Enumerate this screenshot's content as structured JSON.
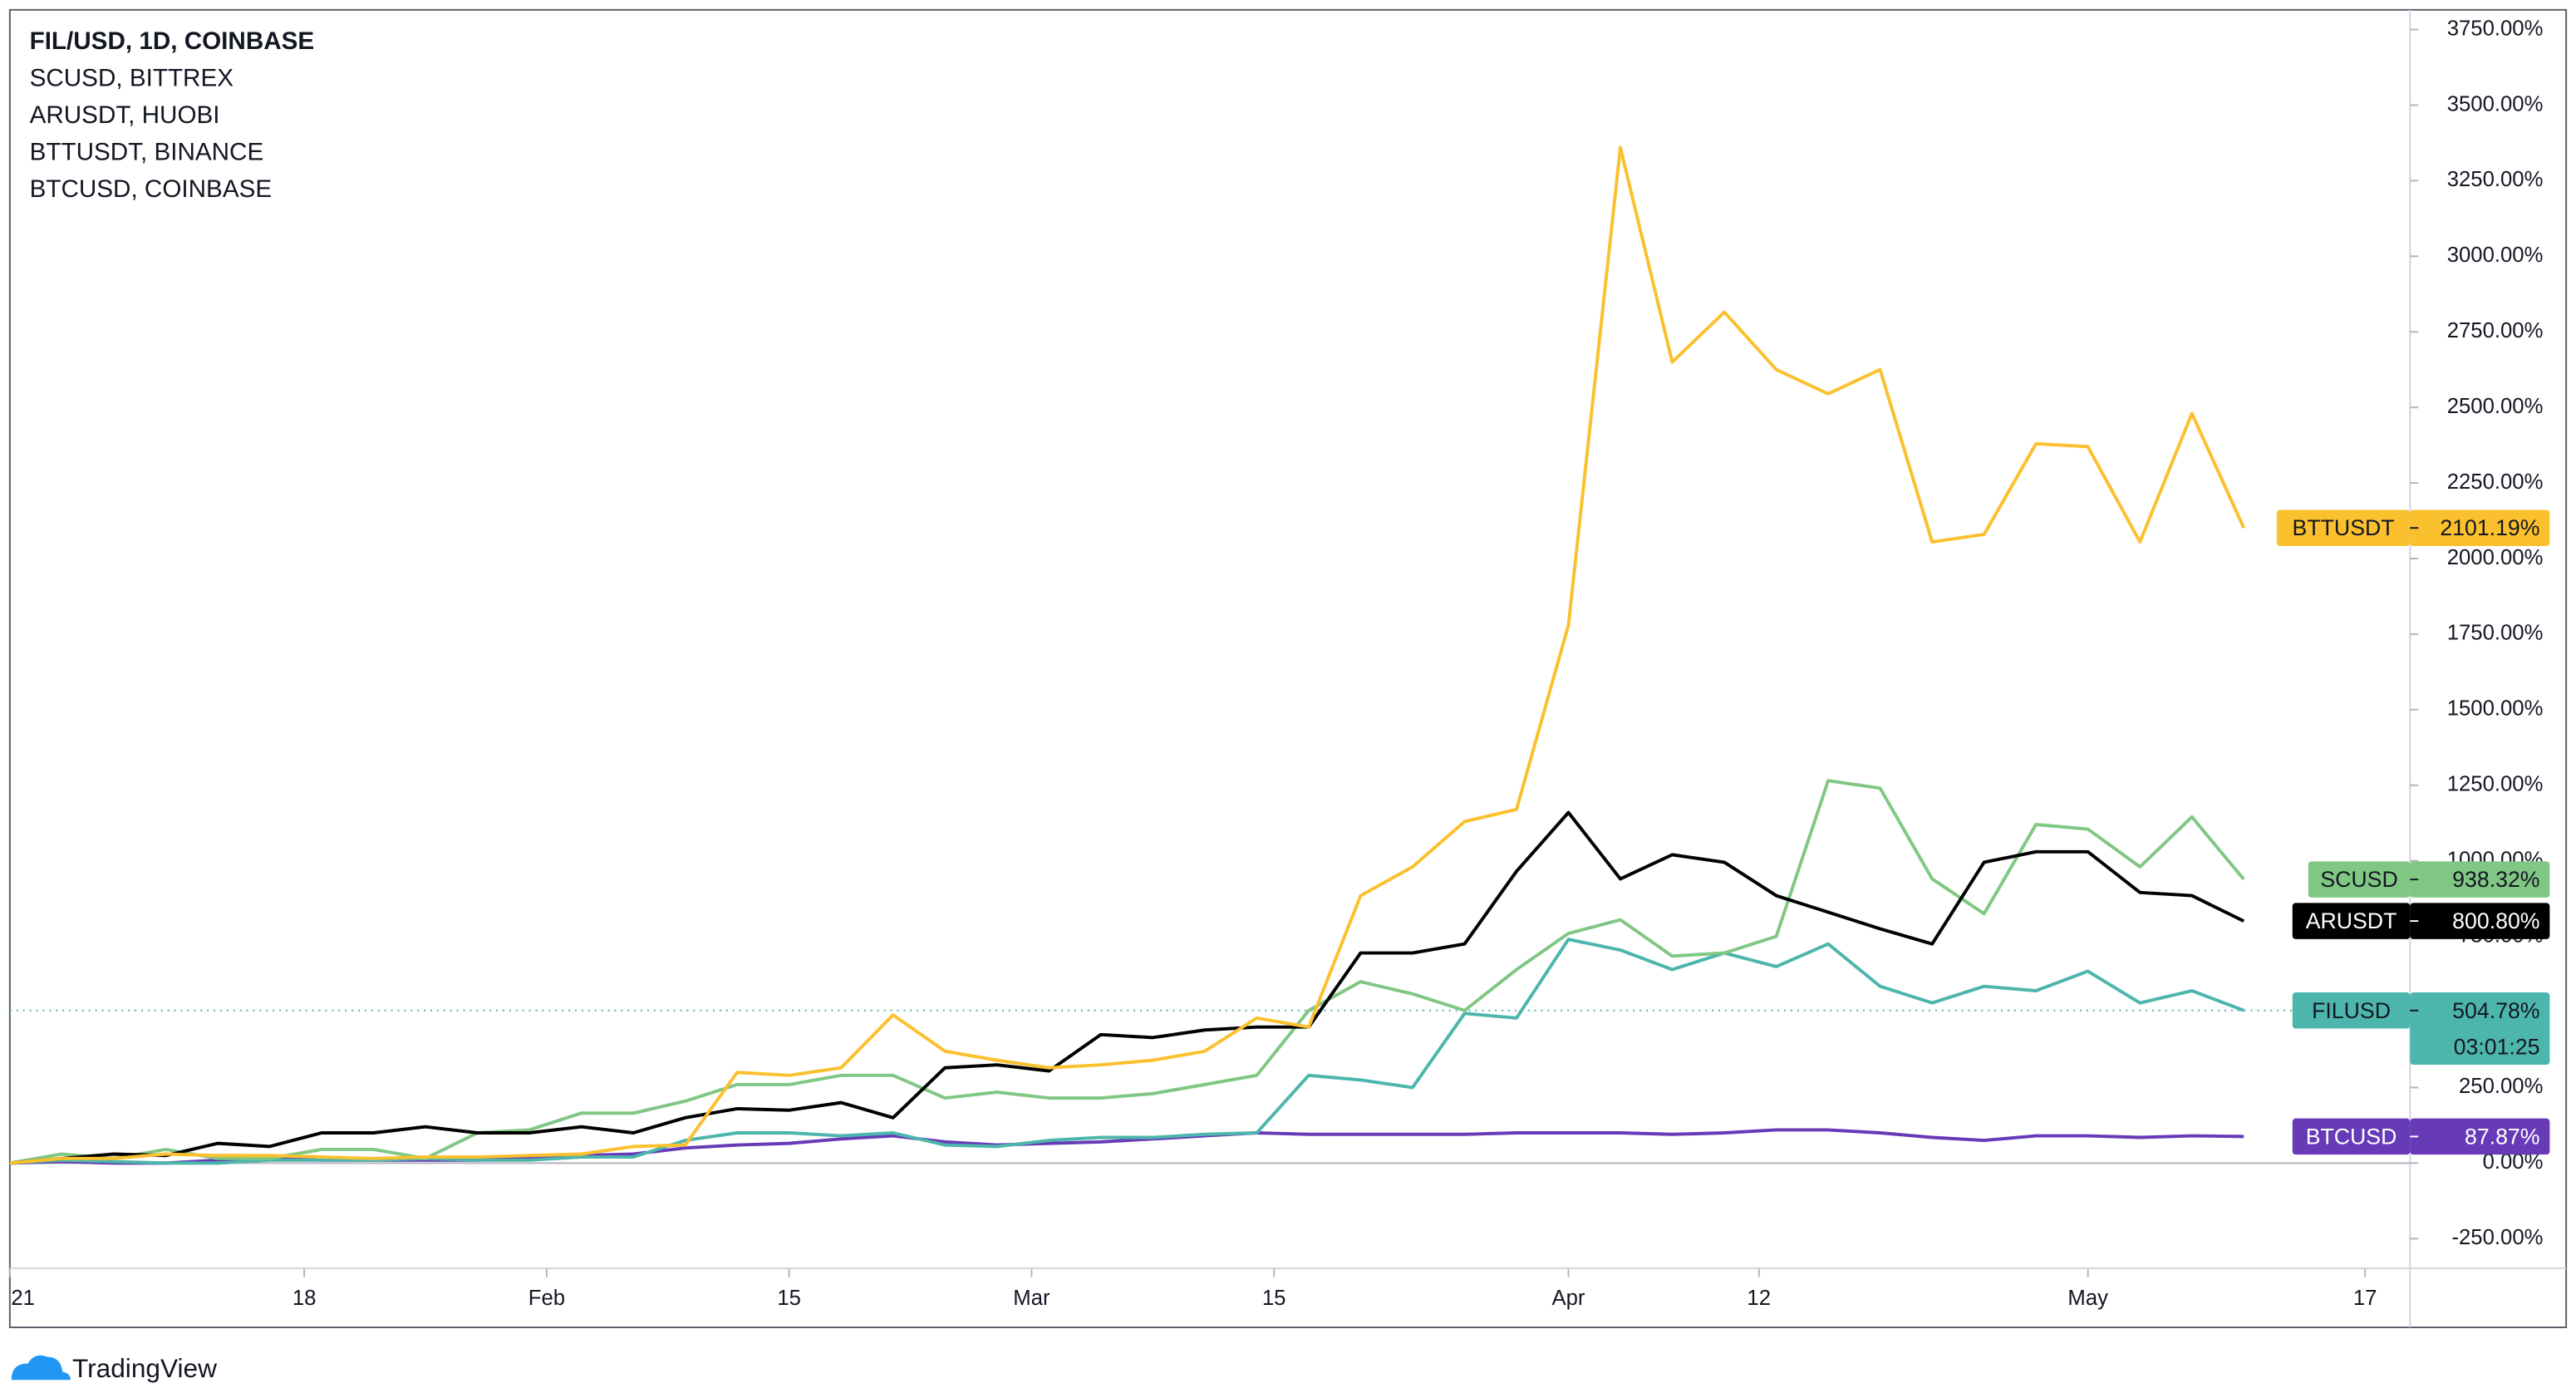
{
  "chart_data": {
    "type": "line",
    "brand": "TradingView",
    "x": [
      0,
      3,
      6,
      9,
      12,
      15,
      18,
      21,
      24,
      27,
      30,
      33,
      36,
      39,
      42,
      45,
      48,
      51,
      54,
      57,
      60,
      63,
      66,
      69,
      72,
      75,
      78,
      81,
      84,
      87,
      90,
      93,
      96,
      99,
      102,
      105,
      108,
      111,
      114,
      117,
      120,
      123,
      126,
      129
    ],
    "xlim": [
      0,
      138.6
    ],
    "xticks": [
      {
        "value": 0,
        "label": "21"
      },
      {
        "value": 17,
        "label": "18"
      },
      {
        "value": 31,
        "label": "Feb"
      },
      {
        "value": 45,
        "label": "15"
      },
      {
        "value": 59,
        "label": "Mar"
      },
      {
        "value": 73,
        "label": "15"
      },
      {
        "value": 90,
        "label": "Apr"
      },
      {
        "value": 101,
        "label": "12"
      },
      {
        "value": 120,
        "label": "May"
      },
      {
        "value": 136,
        "label": "17"
      }
    ],
    "ylim": [
      -350,
      3800
    ],
    "yticks": [
      {
        "value": -250,
        "label": "-250.00%"
      },
      {
        "value": 0,
        "label": "0.00%"
      },
      {
        "value": 250,
        "label": "250.00%"
      },
      {
        "value": 500,
        "label": "500.00%"
      },
      {
        "value": 750,
        "label": "750.00%"
      },
      {
        "value": 1000,
        "label": "1000.00%"
      },
      {
        "value": 1250,
        "label": "1250.00%"
      },
      {
        "value": 1500,
        "label": "1500.00%"
      },
      {
        "value": 1750,
        "label": "1750.00%"
      },
      {
        "value": 2000,
        "label": "2000.00%"
      },
      {
        "value": 2250,
        "label": "2250.00%"
      },
      {
        "value": 2500,
        "label": "2500.00%"
      },
      {
        "value": 2750,
        "label": "2750.00%"
      },
      {
        "value": 3000,
        "label": "3000.00%"
      },
      {
        "value": 3250,
        "label": "3250.00%"
      },
      {
        "value": 3500,
        "label": "3500.00%"
      },
      {
        "value": 3750,
        "label": "3750.00%"
      }
    ],
    "zero_line": true,
    "series": [
      {
        "name": "FIL/USD, 1D, COINBASE",
        "symbol": "FILUSD",
        "color": "#4db6ac",
        "text_color": "#131722",
        "last_label": "504.78%",
        "countdown": "03:01:25",
        "price_line": true,
        "values": [
          0,
          10,
          5,
          0,
          0,
          10,
          10,
          10,
          15,
          10,
          10,
          20,
          20,
          75,
          100,
          100,
          90,
          100,
          60,
          55,
          75,
          85,
          85,
          95,
          100,
          290,
          275,
          250,
          495,
          480,
          740,
          705,
          640,
          695,
          650,
          725,
          585,
          530,
          585,
          570,
          635,
          530,
          570,
          504.78
        ]
      },
      {
        "name": "SCUSD, BITTREX",
        "symbol": "SCUSD",
        "color": "#81c784",
        "text_color": "#131722",
        "last_label": "938.32%",
        "values": [
          0,
          30,
          15,
          45,
          15,
          15,
          45,
          45,
          15,
          100,
          110,
          165,
          165,
          205,
          260,
          260,
          290,
          290,
          215,
          235,
          215,
          215,
          230,
          260,
          290,
          505,
          600,
          560,
          505,
          640,
          760,
          805,
          685,
          695,
          750,
          1265,
          1240,
          940,
          825,
          1120,
          1105,
          980,
          1145,
          938.32
        ]
      },
      {
        "name": "ARUSDT, HUOBI",
        "symbol": "ARUSDT",
        "color": "#000000",
        "text_color": "#ffffff",
        "last_label": "800.80%",
        "values": [
          0,
          15,
          30,
          25,
          65,
          55,
          100,
          100,
          120,
          100,
          100,
          120,
          100,
          150,
          180,
          175,
          200,
          150,
          315,
          325,
          305,
          425,
          415,
          440,
          450,
          450,
          695,
          695,
          725,
          965,
          1160,
          940,
          1020,
          995,
          885,
          830,
          775,
          725,
          995,
          1030,
          1030,
          895,
          885,
          800.8
        ]
      },
      {
        "name": "BTTUSDT, BINANCE",
        "symbol": "BTTUSDT",
        "color": "#fbc02d",
        "text_color": "#131722",
        "last_label": "2101.19%",
        "values": [
          0,
          15,
          15,
          30,
          25,
          25,
          20,
          15,
          20,
          20,
          25,
          30,
          55,
          60,
          300,
          290,
          315,
          490,
          370,
          340,
          315,
          325,
          340,
          370,
          480,
          450,
          885,
          980,
          1130,
          1170,
          1780,
          3360,
          2650,
          2815,
          2625,
          2545,
          2625,
          2055,
          2080,
          2380,
          2370,
          2055,
          2480,
          2101.19
        ]
      },
      {
        "name": "BTCUSD, COINBASE",
        "symbol": "BTCUSD",
        "color": "#673ab7",
        "text_color": "#ffffff",
        "last_label": "87.87%",
        "values": [
          0,
          5,
          0,
          0,
          10,
          15,
          10,
          10,
          10,
          10,
          15,
          25,
          30,
          50,
          60,
          65,
          80,
          90,
          70,
          60,
          65,
          70,
          80,
          90,
          100,
          95,
          95,
          95,
          95,
          100,
          100,
          100,
          95,
          100,
          110,
          110,
          100,
          85,
          75,
          90,
          90,
          85,
          90,
          87.87
        ]
      }
    ]
  }
}
